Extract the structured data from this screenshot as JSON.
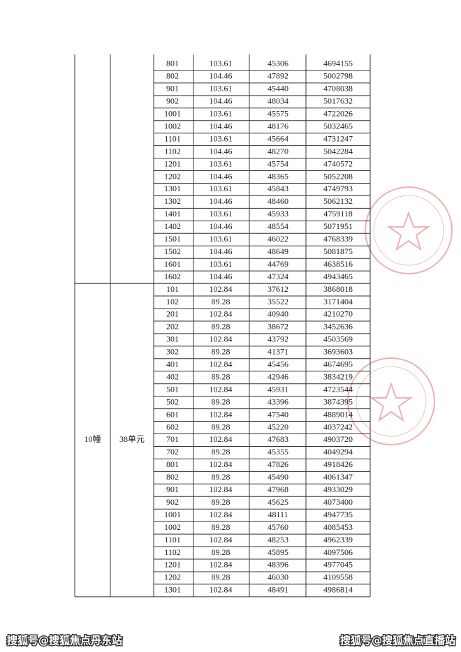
{
  "table": {
    "sections": [
      {
        "rows": [
          [
            "801",
            "103.61",
            "45306",
            "4694155"
          ],
          [
            "802",
            "104.46",
            "47892",
            "5002798"
          ],
          [
            "901",
            "103.61",
            "45440",
            "4708038"
          ],
          [
            "902",
            "104.46",
            "48034",
            "5017632"
          ],
          [
            "1001",
            "103.61",
            "45575",
            "4722026"
          ],
          [
            "1002",
            "104.46",
            "48176",
            "5032465"
          ],
          [
            "1101",
            "103.61",
            "45664",
            "4731247"
          ],
          [
            "1102",
            "104.46",
            "48270",
            "5042284"
          ],
          [
            "1201",
            "103.61",
            "45754",
            "4740572"
          ],
          [
            "1202",
            "104.46",
            "48365",
            "5052208"
          ],
          [
            "1301",
            "103.61",
            "45843",
            "4749793"
          ],
          [
            "1302",
            "104.46",
            "48460",
            "5062132"
          ],
          [
            "1401",
            "103.61",
            "45933",
            "4759118"
          ],
          [
            "1402",
            "104.46",
            "48554",
            "5071951"
          ],
          [
            "1501",
            "103.61",
            "46022",
            "4768339"
          ],
          [
            "1502",
            "104.46",
            "48649",
            "5081875"
          ],
          [
            "1601",
            "103.61",
            "44769",
            "4638516"
          ],
          [
            "1602",
            "104.46",
            "47324",
            "4943465"
          ]
        ]
      },
      {
        "building": "10幢",
        "unit": "38单元",
        "rows": [
          [
            "101",
            "102.84",
            "37612",
            "3868018"
          ],
          [
            "102",
            "89.28",
            "35522",
            "3171404"
          ],
          [
            "201",
            "102.84",
            "40940",
            "4210270"
          ],
          [
            "202",
            "89.28",
            "38672",
            "3452636"
          ],
          [
            "301",
            "102.84",
            "43792",
            "4503569"
          ],
          [
            "302",
            "89.28",
            "41371",
            "3693603"
          ],
          [
            "401",
            "102.84",
            "45456",
            "4674695"
          ],
          [
            "402",
            "89.28",
            "42946",
            "3834219"
          ],
          [
            "501",
            "102.84",
            "45931",
            "4723544"
          ],
          [
            "502",
            "89.28",
            "43396",
            "3874395"
          ],
          [
            "601",
            "102.84",
            "47540",
            "4889014"
          ],
          [
            "602",
            "89.28",
            "45220",
            "4037242"
          ],
          [
            "701",
            "102.84",
            "47683",
            "4903720"
          ],
          [
            "702",
            "89.28",
            "45355",
            "4049294"
          ],
          [
            "801",
            "102.84",
            "47826",
            "4918426"
          ],
          [
            "802",
            "89.28",
            "45490",
            "4061347"
          ],
          [
            "901",
            "102.84",
            "47968",
            "4933029"
          ],
          [
            "902",
            "89.28",
            "45625",
            "4073400"
          ],
          [
            "1001",
            "102.84",
            "48111",
            "4947735"
          ],
          [
            "1002",
            "89.28",
            "45760",
            "4085453"
          ],
          [
            "1101",
            "102.84",
            "48253",
            "4962339"
          ],
          [
            "1102",
            "89.28",
            "45895",
            "4097506"
          ],
          [
            "1201",
            "102.84",
            "48396",
            "4977045"
          ],
          [
            "1202",
            "89.28",
            "46030",
            "4109558"
          ],
          [
            "1301",
            "102.84",
            "48491",
            "4986814"
          ]
        ]
      }
    ]
  },
  "watermarks": {
    "left": "搜狐号@搜狐焦点丹东站",
    "right": "搜狐号@搜狐焦点直播站"
  }
}
